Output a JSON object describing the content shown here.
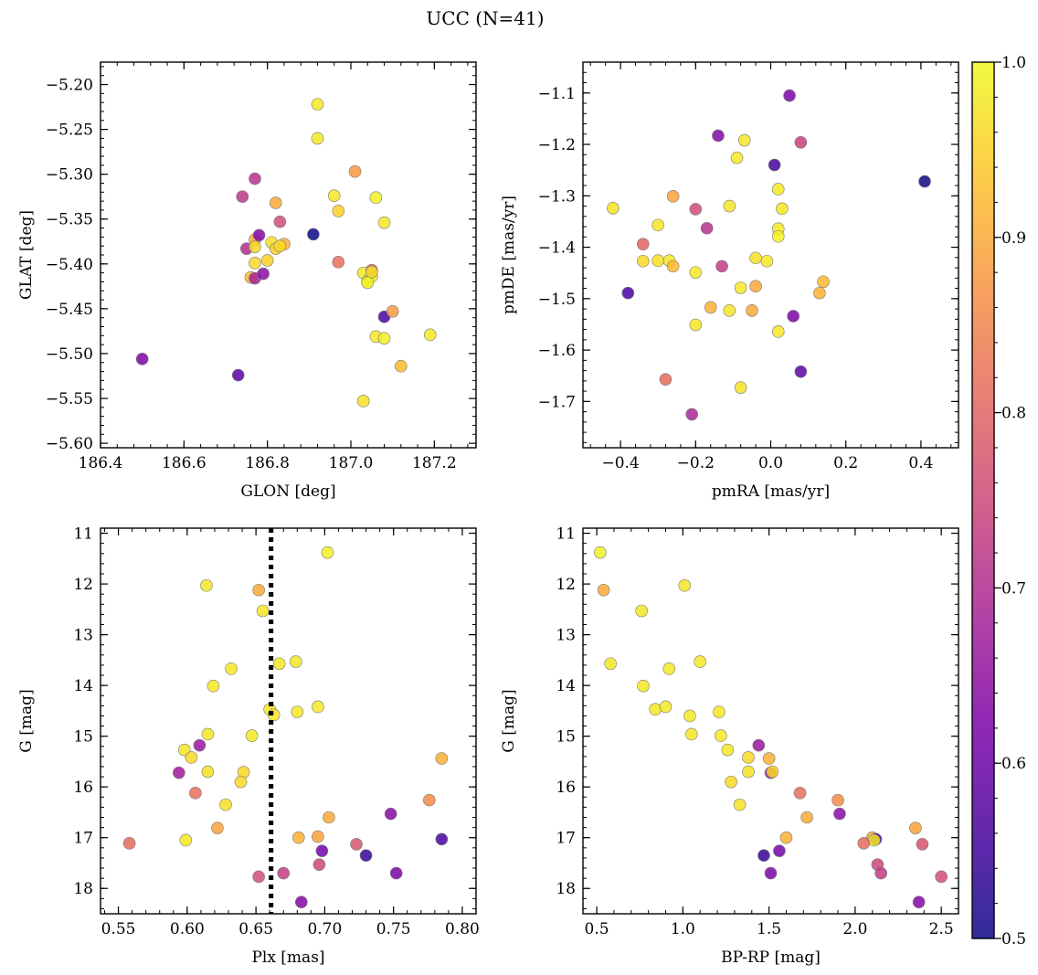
{
  "title": "UCC (N=41)",
  "colorbar": {
    "range": [
      0.5,
      1.0
    ],
    "ticks": [
      0.5,
      0.6,
      0.7,
      0.8,
      0.9,
      1.0
    ],
    "colormap": "plasma"
  },
  "chart_data": [
    {
      "type": "scatter",
      "xlabel": "GLON [deg]",
      "ylabel": "GLAT [deg]",
      "xlim": [
        186.4,
        187.3
      ],
      "ylim": [
        -5.605,
        -5.175
      ],
      "yinvert": false,
      "xticks": [
        186.4,
        186.6,
        186.8,
        187.0,
        187.2
      ],
      "yticks": [
        -5.6,
        -5.55,
        -5.5,
        -5.45,
        -5.4,
        -5.35,
        -5.3,
        -5.25,
        -5.2
      ],
      "xtickfmt": 1,
      "ytickfmt": 2,
      "vline": null,
      "points": [
        {
          "x": 186.5,
          "y": -5.506,
          "p": 0.62
        },
        {
          "x": 186.73,
          "y": -5.524,
          "p": 0.58
        },
        {
          "x": 186.74,
          "y": -5.325,
          "p": 0.72
        },
        {
          "x": 186.75,
          "y": -5.383,
          "p": 0.7
        },
        {
          "x": 186.76,
          "y": -5.415,
          "p": 0.92
        },
        {
          "x": 186.77,
          "y": -5.305,
          "p": 0.71
        },
        {
          "x": 186.77,
          "y": -5.373,
          "p": 0.9
        },
        {
          "x": 186.77,
          "y": -5.381,
          "p": 0.96
        },
        {
          "x": 186.77,
          "y": -5.399,
          "p": 0.96
        },
        {
          "x": 186.77,
          "y": -5.416,
          "p": 0.68
        },
        {
          "x": 186.78,
          "y": -5.368,
          "p": 0.63
        },
        {
          "x": 186.79,
          "y": -5.411,
          "p": 0.64
        },
        {
          "x": 186.8,
          "y": -5.396,
          "p": 0.95
        },
        {
          "x": 186.81,
          "y": -5.376,
          "p": 0.97
        },
        {
          "x": 186.82,
          "y": -5.332,
          "p": 0.9
        },
        {
          "x": 186.82,
          "y": -5.383,
          "p": 0.95
        },
        {
          "x": 186.83,
          "y": -5.353,
          "p": 0.76
        },
        {
          "x": 186.84,
          "y": -5.378,
          "p": 0.91
        },
        {
          "x": 186.91,
          "y": -5.367,
          "p": 0.5
        },
        {
          "x": 186.92,
          "y": -5.222,
          "p": 0.98
        },
        {
          "x": 186.92,
          "y": -5.26,
          "p": 0.98
        },
        {
          "x": 186.96,
          "y": -5.324,
          "p": 0.98
        },
        {
          "x": 186.97,
          "y": -5.341,
          "p": 0.95
        },
        {
          "x": 186.97,
          "y": -5.398,
          "p": 0.82
        },
        {
          "x": 187.01,
          "y": -5.297,
          "p": 0.88
        },
        {
          "x": 187.03,
          "y": -5.553,
          "p": 0.97
        },
        {
          "x": 187.03,
          "y": -5.41,
          "p": 0.98
        },
        {
          "x": 187.04,
          "y": -5.419,
          "p": 0.98
        },
        {
          "x": 187.05,
          "y": -5.414,
          "p": 0.99
        },
        {
          "x": 187.05,
          "y": -5.407,
          "p": 0.8
        },
        {
          "x": 187.06,
          "y": -5.326,
          "p": 0.99
        },
        {
          "x": 187.06,
          "y": -5.481,
          "p": 0.98
        },
        {
          "x": 187.08,
          "y": -5.354,
          "p": 0.98
        },
        {
          "x": 187.08,
          "y": -5.459,
          "p": 0.56
        },
        {
          "x": 187.08,
          "y": -5.483,
          "p": 0.99
        },
        {
          "x": 187.1,
          "y": -5.453,
          "p": 0.88
        },
        {
          "x": 187.12,
          "y": -5.514,
          "p": 0.92
        },
        {
          "x": 187.19,
          "y": -5.479,
          "p": 0.98
        },
        {
          "x": 187.05,
          "y": -5.409,
          "p": 0.97
        },
        {
          "x": 186.83,
          "y": -5.38,
          "p": 0.96
        },
        {
          "x": 187.04,
          "y": -5.421,
          "p": 0.99
        }
      ]
    },
    {
      "type": "scatter",
      "xlabel": "pmRA [mas/yr]",
      "ylabel": "pmDE [mas/yr]",
      "xlim": [
        -0.5,
        0.5
      ],
      "ylim": [
        -1.79,
        -1.04
      ],
      "yinvert": false,
      "xticks": [
        -0.4,
        -0.2,
        0.0,
        0.2,
        0.4
      ],
      "yticks": [
        -1.7,
        -1.6,
        -1.5,
        -1.4,
        -1.3,
        -1.2,
        -1.1
      ],
      "xtickfmt": 1,
      "ytickfmt": 1,
      "vline": null,
      "points": [
        {
          "x": 0.05,
          "y": -1.105,
          "p": 0.62
        },
        {
          "x": -0.14,
          "y": -1.183,
          "p": 0.63
        },
        {
          "x": -0.07,
          "y": -1.192,
          "p": 0.98
        },
        {
          "x": 0.08,
          "y": -1.196,
          "p": 0.74
        },
        {
          "x": -0.09,
          "y": -1.226,
          "p": 0.98
        },
        {
          "x": 0.01,
          "y": -1.24,
          "p": 0.55
        },
        {
          "x": 0.41,
          "y": -1.272,
          "p": 0.5
        },
        {
          "x": 0.02,
          "y": -1.287,
          "p": 0.98
        },
        {
          "x": -0.26,
          "y": -1.301,
          "p": 0.89
        },
        {
          "x": -0.42,
          "y": -1.324,
          "p": 0.97
        },
        {
          "x": -0.11,
          "y": -1.32,
          "p": 0.98
        },
        {
          "x": -0.2,
          "y": -1.326,
          "p": 0.76
        },
        {
          "x": 0.03,
          "y": -1.325,
          "p": 0.98
        },
        {
          "x": -0.3,
          "y": -1.357,
          "p": 0.98
        },
        {
          "x": -0.17,
          "y": -1.363,
          "p": 0.71
        },
        {
          "x": 0.02,
          "y": -1.364,
          "p": 0.98
        },
        {
          "x": 0.02,
          "y": -1.379,
          "p": 0.99
        },
        {
          "x": -0.34,
          "y": -1.394,
          "p": 0.8
        },
        {
          "x": -0.04,
          "y": -1.421,
          "p": 0.97
        },
        {
          "x": -0.01,
          "y": -1.427,
          "p": 0.98
        },
        {
          "x": -0.34,
          "y": -1.427,
          "p": 0.96
        },
        {
          "x": -0.3,
          "y": -1.426,
          "p": 0.97
        },
        {
          "x": -0.27,
          "y": -1.426,
          "p": 0.98
        },
        {
          "x": -0.26,
          "y": -1.437,
          "p": 0.92
        },
        {
          "x": -0.13,
          "y": -1.437,
          "p": 0.73
        },
        {
          "x": -0.2,
          "y": -1.449,
          "p": 0.98
        },
        {
          "x": 0.14,
          "y": -1.467,
          "p": 0.92
        },
        {
          "x": -0.04,
          "y": -1.476,
          "p": 0.9
        },
        {
          "x": -0.08,
          "y": -1.479,
          "p": 0.98
        },
        {
          "x": -0.38,
          "y": -1.489,
          "p": 0.56
        },
        {
          "x": 0.13,
          "y": -1.489,
          "p": 0.91
        },
        {
          "x": -0.16,
          "y": -1.517,
          "p": 0.91
        },
        {
          "x": -0.05,
          "y": -1.523,
          "p": 0.9
        },
        {
          "x": -0.11,
          "y": -1.523,
          "p": 0.98
        },
        {
          "x": 0.06,
          "y": -1.534,
          "p": 0.62
        },
        {
          "x": -0.2,
          "y": -1.551,
          "p": 0.98
        },
        {
          "x": 0.02,
          "y": -1.564,
          "p": 0.98
        },
        {
          "x": 0.08,
          "y": -1.642,
          "p": 0.58
        },
        {
          "x": -0.28,
          "y": -1.657,
          "p": 0.81
        },
        {
          "x": -0.08,
          "y": -1.673,
          "p": 0.97
        },
        {
          "x": -0.21,
          "y": -1.725,
          "p": 0.69
        }
      ]
    },
    {
      "type": "scatter",
      "xlabel": "Plx [mas]",
      "ylabel": "G [mag]",
      "xlim": [
        0.537,
        0.81
      ],
      "ylim": [
        10.9,
        18.5
      ],
      "yinvert": true,
      "xticks": [
        0.55,
        0.6,
        0.65,
        0.7,
        0.75,
        0.8
      ],
      "yticks": [
        11,
        12,
        13,
        14,
        15,
        16,
        17,
        18
      ],
      "xtickfmt": 2,
      "ytickfmt": 0,
      "vline": 0.661,
      "points": [
        {
          "x": 0.702,
          "y": 11.38,
          "p": 0.99
        },
        {
          "x": 0.614,
          "y": 12.03,
          "p": 0.98
        },
        {
          "x": 0.652,
          "y": 12.12,
          "p": 0.9
        },
        {
          "x": 0.655,
          "y": 12.53,
          "p": 0.98
        },
        {
          "x": 0.667,
          "y": 13.57,
          "p": 0.98
        },
        {
          "x": 0.679,
          "y": 13.53,
          "p": 0.98
        },
        {
          "x": 0.632,
          "y": 13.67,
          "p": 0.98
        },
        {
          "x": 0.619,
          "y": 14.01,
          "p": 0.98
        },
        {
          "x": 0.695,
          "y": 14.42,
          "p": 0.98
        },
        {
          "x": 0.66,
          "y": 14.47,
          "p": 0.98
        },
        {
          "x": 0.68,
          "y": 14.52,
          "p": 0.98
        },
        {
          "x": 0.663,
          "y": 14.58,
          "p": 0.98
        },
        {
          "x": 0.615,
          "y": 14.96,
          "p": 0.98
        },
        {
          "x": 0.647,
          "y": 14.99,
          "p": 0.98
        },
        {
          "x": 0.598,
          "y": 15.27,
          "p": 0.98
        },
        {
          "x": 0.785,
          "y": 15.44,
          "p": 0.91
        },
        {
          "x": 0.603,
          "y": 15.42,
          "p": 0.96
        },
        {
          "x": 0.615,
          "y": 15.7,
          "p": 0.97
        },
        {
          "x": 0.641,
          "y": 15.71,
          "p": 0.96
        },
        {
          "x": 0.594,
          "y": 15.72,
          "p": 0.67
        },
        {
          "x": 0.639,
          "y": 15.9,
          "p": 0.96
        },
        {
          "x": 0.606,
          "y": 16.12,
          "p": 0.82
        },
        {
          "x": 0.628,
          "y": 16.35,
          "p": 0.97
        },
        {
          "x": 0.609,
          "y": 15.18,
          "p": 0.66
        },
        {
          "x": 0.748,
          "y": 16.53,
          "p": 0.64
        },
        {
          "x": 0.776,
          "y": 16.26,
          "p": 0.86
        },
        {
          "x": 0.703,
          "y": 16.6,
          "p": 0.9
        },
        {
          "x": 0.622,
          "y": 16.81,
          "p": 0.89
        },
        {
          "x": 0.558,
          "y": 17.11,
          "p": 0.81
        },
        {
          "x": 0.599,
          "y": 17.05,
          "p": 0.98
        },
        {
          "x": 0.681,
          "y": 17.0,
          "p": 0.91
        },
        {
          "x": 0.695,
          "y": 16.98,
          "p": 0.89
        },
        {
          "x": 0.723,
          "y": 17.13,
          "p": 0.77
        },
        {
          "x": 0.785,
          "y": 17.03,
          "p": 0.56
        },
        {
          "x": 0.698,
          "y": 17.26,
          "p": 0.61
        },
        {
          "x": 0.73,
          "y": 17.35,
          "p": 0.54
        },
        {
          "x": 0.696,
          "y": 17.53,
          "p": 0.75
        },
        {
          "x": 0.752,
          "y": 17.7,
          "p": 0.62
        },
        {
          "x": 0.67,
          "y": 17.7,
          "p": 0.73
        },
        {
          "x": 0.652,
          "y": 17.77,
          "p": 0.76
        },
        {
          "x": 0.683,
          "y": 18.27,
          "p": 0.63
        }
      ]
    },
    {
      "type": "scatter",
      "xlabel": "BP-RP [mag]",
      "ylabel": "G [mag]",
      "xlim": [
        0.42,
        2.6
      ],
      "ylim": [
        10.9,
        18.5
      ],
      "yinvert": true,
      "xticks": [
        0.5,
        1.0,
        1.5,
        2.0,
        2.5
      ],
      "yticks": [
        11,
        12,
        13,
        14,
        15,
        16,
        17,
        18
      ],
      "xtickfmt": 1,
      "ytickfmt": 0,
      "vline": null,
      "points": [
        {
          "x": 0.52,
          "y": 11.38,
          "p": 0.99
        },
        {
          "x": 0.54,
          "y": 12.12,
          "p": 0.9
        },
        {
          "x": 1.01,
          "y": 12.03,
          "p": 0.98
        },
        {
          "x": 0.76,
          "y": 12.53,
          "p": 0.98
        },
        {
          "x": 0.58,
          "y": 13.57,
          "p": 0.98
        },
        {
          "x": 1.1,
          "y": 13.53,
          "p": 0.98
        },
        {
          "x": 0.92,
          "y": 13.67,
          "p": 0.98
        },
        {
          "x": 0.77,
          "y": 14.01,
          "p": 0.98
        },
        {
          "x": 0.84,
          "y": 14.47,
          "p": 0.98
        },
        {
          "x": 0.9,
          "y": 14.42,
          "p": 0.98
        },
        {
          "x": 1.21,
          "y": 14.52,
          "p": 0.98
        },
        {
          "x": 1.04,
          "y": 14.6,
          "p": 0.98
        },
        {
          "x": 1.05,
          "y": 14.96,
          "p": 0.98
        },
        {
          "x": 1.22,
          "y": 14.99,
          "p": 0.98
        },
        {
          "x": 1.44,
          "y": 15.18,
          "p": 0.66
        },
        {
          "x": 1.26,
          "y": 15.27,
          "p": 0.98
        },
        {
          "x": 1.38,
          "y": 15.42,
          "p": 0.96
        },
        {
          "x": 1.5,
          "y": 15.44,
          "p": 0.91
        },
        {
          "x": 1.38,
          "y": 15.7,
          "p": 0.97
        },
        {
          "x": 1.51,
          "y": 15.72,
          "p": 0.67
        },
        {
          "x": 1.52,
          "y": 15.7,
          "p": 0.96
        },
        {
          "x": 1.28,
          "y": 15.9,
          "p": 0.96
        },
        {
          "x": 1.68,
          "y": 16.12,
          "p": 0.82
        },
        {
          "x": 1.9,
          "y": 16.26,
          "p": 0.86
        },
        {
          "x": 1.33,
          "y": 16.35,
          "p": 0.97
        },
        {
          "x": 1.91,
          "y": 16.53,
          "p": 0.64
        },
        {
          "x": 1.72,
          "y": 16.6,
          "p": 0.9
        },
        {
          "x": 2.35,
          "y": 16.81,
          "p": 0.89
        },
        {
          "x": 1.6,
          "y": 17.0,
          "p": 0.91
        },
        {
          "x": 2.1,
          "y": 17.0,
          "p": 0.9
        },
        {
          "x": 2.12,
          "y": 17.03,
          "p": 0.56
        },
        {
          "x": 2.11,
          "y": 17.05,
          "p": 0.98
        },
        {
          "x": 2.05,
          "y": 17.11,
          "p": 0.81
        },
        {
          "x": 2.39,
          "y": 17.13,
          "p": 0.77
        },
        {
          "x": 1.56,
          "y": 17.26,
          "p": 0.61
        },
        {
          "x": 1.47,
          "y": 17.35,
          "p": 0.54
        },
        {
          "x": 2.13,
          "y": 17.53,
          "p": 0.75
        },
        {
          "x": 1.51,
          "y": 17.7,
          "p": 0.62
        },
        {
          "x": 2.15,
          "y": 17.7,
          "p": 0.73
        },
        {
          "x": 2.5,
          "y": 17.77,
          "p": 0.76
        },
        {
          "x": 2.37,
          "y": 18.27,
          "p": 0.63
        }
      ]
    }
  ]
}
